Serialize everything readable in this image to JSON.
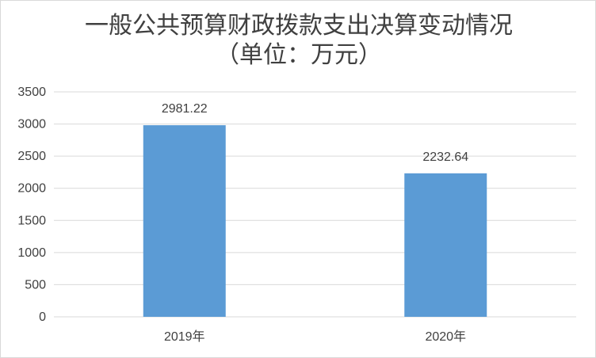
{
  "chart_data": {
    "type": "bar",
    "title_line1": "一般公共预算财政拨款支出决算变动情况",
    "title_line2": "（单位：万元）",
    "categories": [
      "2019年",
      "2020年"
    ],
    "values": [
      2981.22,
      2232.64
    ],
    "data_labels": [
      "2981.22",
      "2232.64"
    ],
    "ylim": [
      0,
      3500
    ],
    "yticks": [
      0,
      500,
      1000,
      1500,
      2000,
      2500,
      3000,
      3500
    ],
    "grid": true,
    "legend": "none",
    "bar_color": "#5b9bd5",
    "grid_color": "#d9d9d9",
    "text_color": "#404040"
  }
}
